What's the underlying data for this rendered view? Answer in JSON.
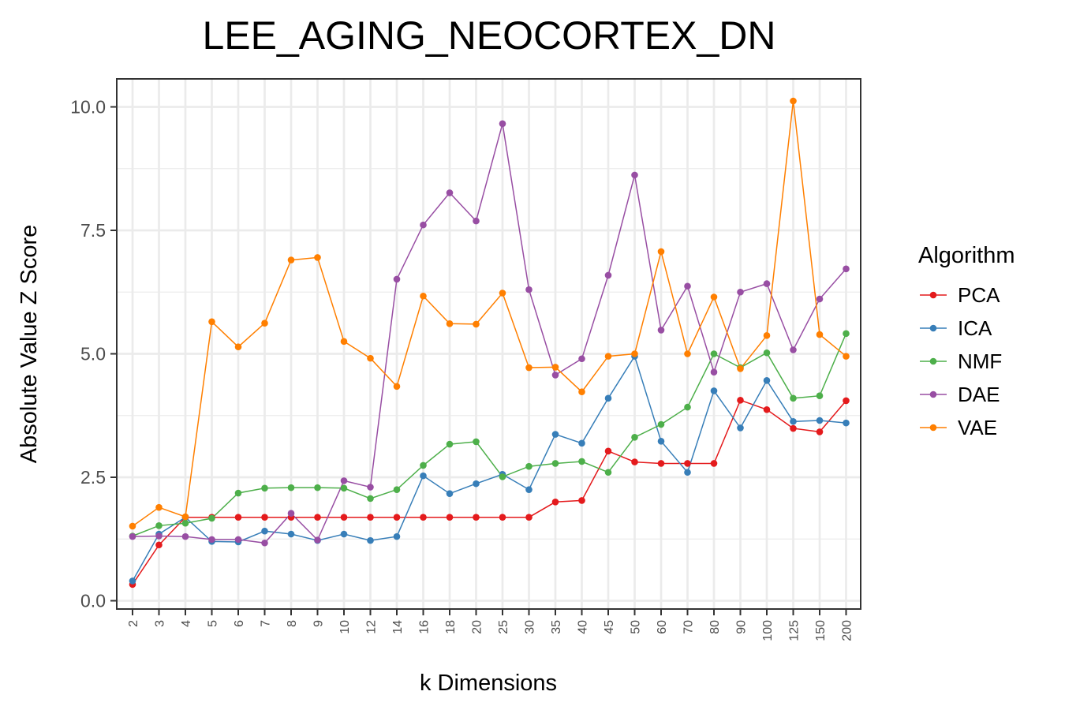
{
  "chart_data": {
    "type": "line",
    "title": "LEE_AGING_NEOCORTEX_DN",
    "xlabel": "k Dimensions",
    "ylabel": "Absolute Value Z Score",
    "categories": [
      "2",
      "3",
      "4",
      "5",
      "6",
      "7",
      "8",
      "9",
      "10",
      "12",
      "14",
      "16",
      "18",
      "20",
      "25",
      "30",
      "35",
      "40",
      "45",
      "50",
      "60",
      "70",
      "80",
      "90",
      "100",
      "125",
      "150",
      "200"
    ],
    "yticks": [
      "0.0",
      "2.5",
      "5.0",
      "7.5",
      "10.0"
    ],
    "ylim": [
      0,
      10.6
    ],
    "grid": true,
    "legend": {
      "title": "Algorithm",
      "placement": "right"
    },
    "series": [
      {
        "name": "PCA",
        "color": "#e41a1c",
        "values": [
          0.33,
          1.13,
          1.69,
          1.69,
          1.69,
          1.69,
          1.69,
          1.69,
          1.69,
          1.69,
          1.69,
          1.69,
          1.69,
          1.69,
          1.69,
          1.69,
          2.0,
          2.03,
          3.03,
          2.81,
          2.78,
          2.78,
          2.78,
          4.06,
          3.87,
          3.49,
          3.42,
          4.05
        ]
      },
      {
        "name": "ICA",
        "color": "#377eb8",
        "values": [
          0.4,
          1.35,
          1.69,
          1.2,
          1.19,
          1.41,
          1.35,
          1.22,
          1.35,
          1.22,
          1.3,
          2.53,
          2.17,
          2.37,
          2.56,
          2.25,
          3.37,
          3.19,
          4.1,
          4.95,
          3.23,
          2.6,
          4.25,
          3.5,
          4.46,
          3.63,
          3.65,
          3.6
        ]
      },
      {
        "name": "NMF",
        "color": "#4daf4a",
        "values": [
          1.31,
          1.52,
          1.57,
          1.67,
          2.18,
          2.28,
          2.29,
          2.29,
          2.28,
          2.07,
          2.25,
          2.74,
          3.17,
          3.22,
          2.51,
          2.72,
          2.78,
          2.82,
          2.6,
          3.31,
          3.57,
          3.92,
          5.0,
          4.72,
          5.02,
          4.1,
          4.15,
          5.41
        ]
      },
      {
        "name": "DAE",
        "color": "#984ea3",
        "values": [
          1.3,
          1.31,
          1.3,
          1.24,
          1.24,
          1.17,
          1.77,
          1.23,
          2.43,
          2.3,
          6.51,
          7.61,
          8.26,
          7.69,
          9.66,
          6.3,
          4.57,
          4.9,
          6.59,
          8.62,
          5.48,
          6.37,
          4.63,
          6.25,
          6.42,
          5.08,
          6.11,
          6.72
        ]
      },
      {
        "name": "VAE",
        "color": "#ff7f00",
        "values": [
          1.51,
          1.89,
          1.7,
          5.65,
          5.14,
          5.62,
          6.9,
          6.95,
          5.25,
          4.91,
          4.34,
          6.17,
          5.61,
          5.6,
          6.23,
          4.72,
          4.73,
          4.23,
          4.95,
          5.0,
          7.07,
          5.0,
          6.15,
          4.7,
          5.37,
          10.12,
          5.39,
          4.95
        ]
      }
    ]
  }
}
